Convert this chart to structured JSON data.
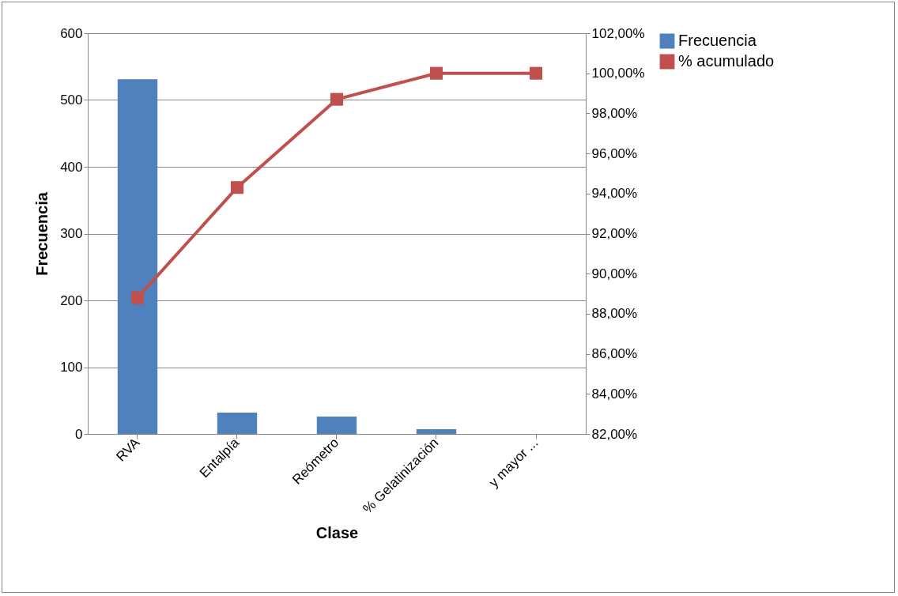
{
  "chart_data": {
    "type": "bar",
    "categories": [
      "RVA",
      "Entalpía",
      "Reómetro",
      "% Gelatinización",
      "y mayor ..."
    ],
    "series": [
      {
        "name": "Frecuencia",
        "color": "#4f81bd",
        "values": [
          531,
          32,
          26,
          7,
          0
        ]
      },
      {
        "name": "% acumulado",
        "type": "line",
        "axis": "y2",
        "color": "#c0504d",
        "values": [
          88.8,
          94.3,
          98.7,
          100,
          100
        ]
      }
    ],
    "xlabel": "Clase",
    "ylabel": "Frecuencia",
    "ylim": [
      0,
      600
    ],
    "yticks": [
      0,
      100,
      200,
      300,
      400,
      500,
      600
    ],
    "y2lim": [
      82,
      102
    ],
    "y2ticks": [
      {
        "value": 82,
        "label": "82,00%"
      },
      {
        "value": 84,
        "label": "84,00%"
      },
      {
        "value": 86,
        "label": "86,00%"
      },
      {
        "value": 88,
        "label": "88,00%"
      },
      {
        "value": 90,
        "label": "90,00%"
      },
      {
        "value": 92,
        "label": "92,00%"
      },
      {
        "value": 94,
        "label": "94,00%"
      },
      {
        "value": 96,
        "label": "96,00%"
      },
      {
        "value": 98,
        "label": "98,00%"
      },
      {
        "value": 100,
        "label": "100,00%"
      },
      {
        "value": 102,
        "label": "102,00%"
      }
    ],
    "grid": "y",
    "legend": "right",
    "marker": "square"
  }
}
